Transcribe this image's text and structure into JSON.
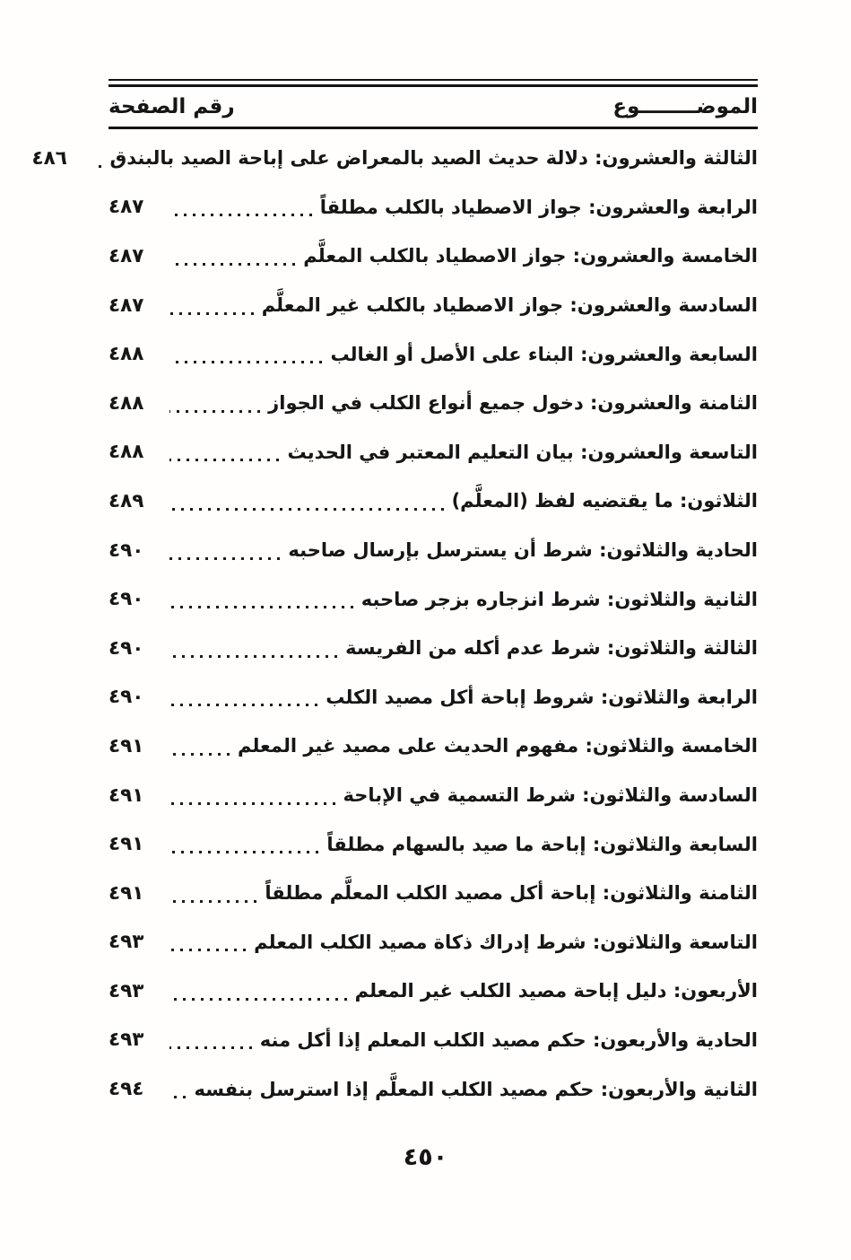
{
  "colors": {
    "ink": "#161616",
    "paper": "#fffefd"
  },
  "header": {
    "topic_label": "الموضــــــــوع",
    "page_number_label": "رقم الصفحة"
  },
  "footer": {
    "page_number": "٤٥٠"
  },
  "toc": {
    "entries": [
      {
        "title": "الثالثة والعشرون: دلالة حديث الصيد بالمعراض على إباحة الصيد بالبندق",
        "page": "٤٨٦"
      },
      {
        "title": "الرابعة والعشرون: جواز الاصطياد بالكلب مطلقاً",
        "page": "٤٨٧"
      },
      {
        "title": "الخامسة والعشرون: جواز الاصطياد بالكلب المعلَّم",
        "page": "٤٨٧"
      },
      {
        "title": "السادسة والعشرون: جواز الاصطياد بالكلب غير المعلَّم",
        "page": "٤٨٧"
      },
      {
        "title": "السابعة والعشرون: البناء على الأصل أو الغالب",
        "page": "٤٨٨"
      },
      {
        "title": "الثامنة والعشرون: دخول جميع أنواع الكلب في الجواز",
        "page": "٤٨٨"
      },
      {
        "title": "التاسعة والعشرون: بيان التعليم المعتبر في الحديث",
        "page": "٤٨٨"
      },
      {
        "title": "الثلاثون: ما يقتضيه لفظ (المعلَّم)",
        "page": "٤٨٩"
      },
      {
        "title": "الحادية والثلاثون: شرط أن يسترسل بإرسال صاحبه",
        "page": "٤٩٠"
      },
      {
        "title": "الثانية والثلاثون: شرط انزجاره بزجر صاحبه",
        "page": "٤٩٠"
      },
      {
        "title": "الثالثة والثلاثون: شرط عدم أكله من الفريسة",
        "page": "٤٩٠"
      },
      {
        "title": "الرابعة والثلاثون: شروط إباحة أكل مصيد الكلب",
        "page": "٤٩٠"
      },
      {
        "title": "الخامسة والثلاثون: مفهوم الحديث على مصيد غير المعلم",
        "page": "٤٩١"
      },
      {
        "title": "السادسة والثلاثون: شرط التسمية في الإباحة",
        "page": "٤٩١"
      },
      {
        "title": "السابعة والثلاثون: إباحة ما صيد بالسهام مطلقاً",
        "page": "٤٩١"
      },
      {
        "title": "الثامنة والثلاثون: إباحة أكل مصيد الكلب المعلَّم مطلقاً",
        "page": "٤٩١"
      },
      {
        "title": "التاسعة والثلاثون: شرط إدراك ذكاة مصيد الكلب المعلم",
        "page": "٤٩٣"
      },
      {
        "title": "الأربعون: دليل إباحة مصيد الكلب غير المعلم",
        "page": "٤٩٣"
      },
      {
        "title": "الحادية والأربعون: حكم مصيد الكلب المعلم إذا أكل منه",
        "page": "٤٩٣"
      },
      {
        "title": "الثانية والأربعون: حكم مصيد الكلب المعلَّم إذا استرسل بنفسه",
        "page": "٤٩٤"
      }
    ]
  }
}
